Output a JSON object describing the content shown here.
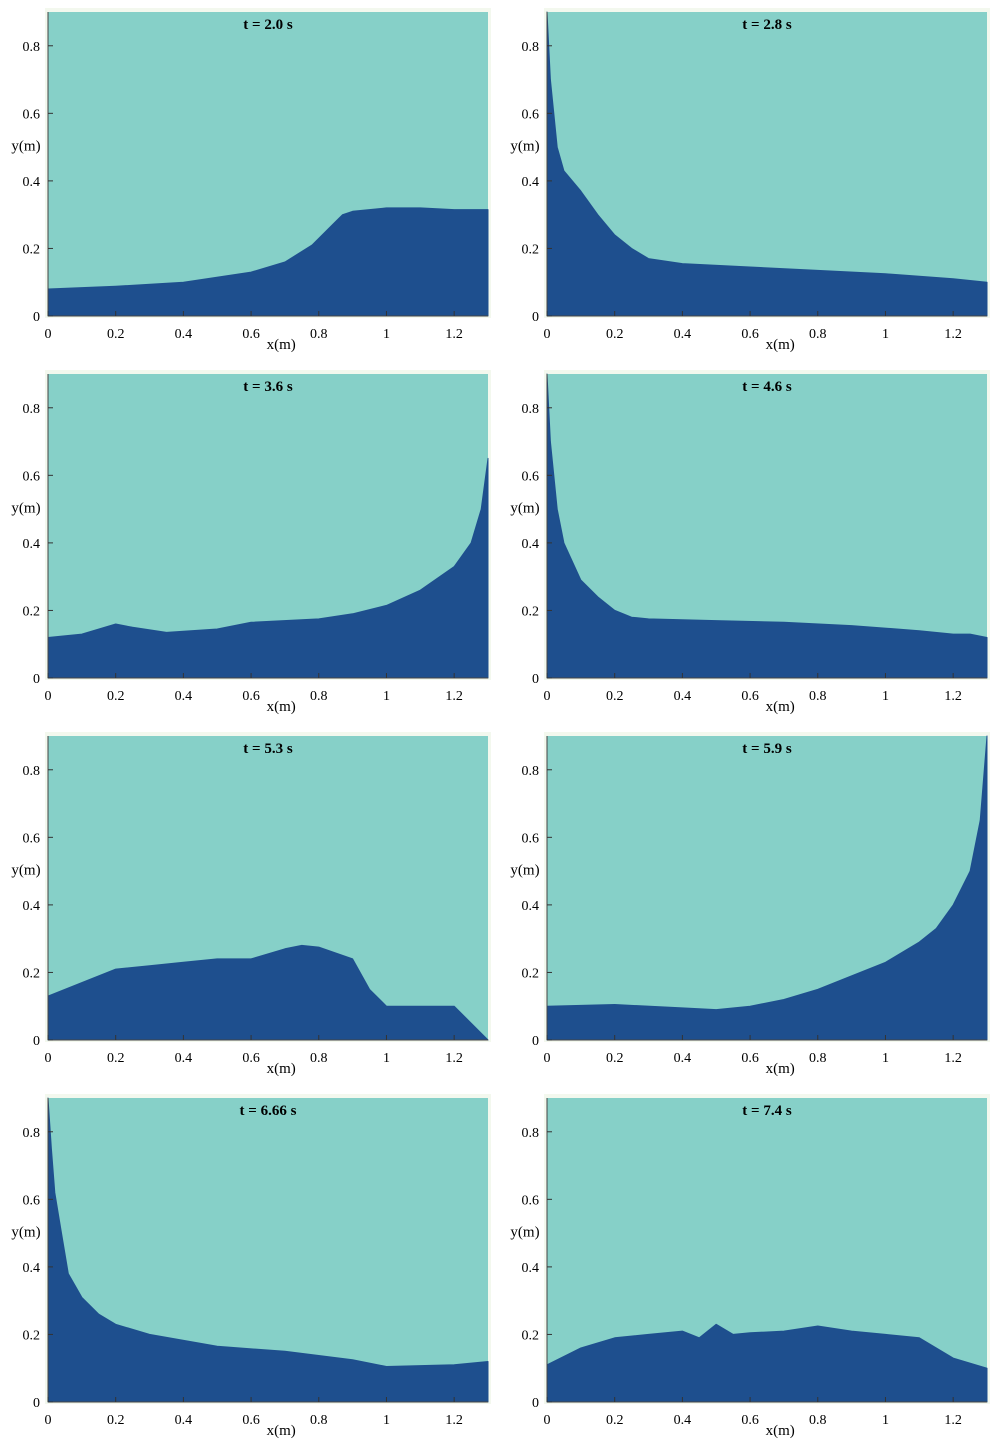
{
  "colors": {
    "air": "#86d0c8",
    "water": "#1e4f8e",
    "frame": "#f3f8ee",
    "axis": "#000000"
  },
  "chart_data": [
    {
      "type": "area",
      "title": "t = 2.0 s",
      "xlabel": "x(m)",
      "ylabel": "y(m)",
      "xlim": [
        0,
        1.3
      ],
      "ylim": [
        0,
        0.9
      ],
      "xticks": [
        "0",
        "0.2",
        "0.4",
        "0.6",
        "0.8",
        "1",
        "1.2"
      ],
      "yticks": [
        "0",
        "0.2",
        "0.4",
        "0.6",
        "0.8"
      ],
      "x": [
        0,
        0.2,
        0.4,
        0.6,
        0.7,
        0.78,
        0.84,
        0.87,
        0.9,
        1.0,
        1.1,
        1.2,
        1.3
      ],
      "y": [
        0.08,
        0.088,
        0.1,
        0.13,
        0.16,
        0.21,
        0.27,
        0.3,
        0.31,
        0.32,
        0.32,
        0.315,
        0.315
      ]
    },
    {
      "type": "area",
      "title": "t = 2.8 s",
      "xlabel": "x(m)",
      "ylabel": "y(m)",
      "xlim": [
        0,
        1.3
      ],
      "ylim": [
        0,
        0.9
      ],
      "xticks": [
        "0",
        "0.2",
        "0.4",
        "0.6",
        "0.8",
        "1",
        "1.2"
      ],
      "yticks": [
        "0",
        "0.2",
        "0.4",
        "0.6",
        "0.8"
      ],
      "x": [
        0,
        0.005,
        0.01,
        0.02,
        0.03,
        0.05,
        0.1,
        0.15,
        0.2,
        0.25,
        0.3,
        0.4,
        0.6,
        0.8,
        1.0,
        1.2,
        1.3
      ],
      "y": [
        0.9,
        0.8,
        0.7,
        0.6,
        0.5,
        0.43,
        0.37,
        0.3,
        0.24,
        0.2,
        0.17,
        0.155,
        0.145,
        0.135,
        0.125,
        0.11,
        0.1
      ]
    },
    {
      "type": "area",
      "title": "t = 3.6 s",
      "xlabel": "x(m)",
      "ylabel": "y(m)",
      "xlim": [
        0,
        1.3
      ],
      "ylim": [
        0,
        0.9
      ],
      "xticks": [
        "0",
        "0.2",
        "0.4",
        "0.6",
        "0.8",
        "1",
        "1.2"
      ],
      "yticks": [
        "0",
        "0.2",
        "0.4",
        "0.6",
        "0.8"
      ],
      "x": [
        0,
        0.1,
        0.2,
        0.25,
        0.35,
        0.5,
        0.6,
        0.8,
        0.9,
        1.0,
        1.1,
        1.2,
        1.25,
        1.28,
        1.3
      ],
      "y": [
        0.12,
        0.13,
        0.16,
        0.15,
        0.135,
        0.145,
        0.165,
        0.175,
        0.19,
        0.215,
        0.26,
        0.33,
        0.4,
        0.5,
        0.65
      ]
    },
    {
      "type": "area",
      "title": "t = 4.6 s",
      "xlabel": "x(m)",
      "ylabel": "y(m)",
      "xlim": [
        0,
        1.3
      ],
      "ylim": [
        0,
        0.9
      ],
      "xticks": [
        "0",
        "0.2",
        "0.4",
        "0.6",
        "0.8",
        "1",
        "1.2"
      ],
      "yticks": [
        "0",
        "0.2",
        "0.4",
        "0.6",
        "0.8"
      ],
      "x": [
        0,
        0.005,
        0.01,
        0.02,
        0.03,
        0.05,
        0.1,
        0.15,
        0.2,
        0.25,
        0.3,
        0.5,
        0.7,
        0.9,
        1.1,
        1.2,
        1.25,
        1.3
      ],
      "y": [
        0.9,
        0.8,
        0.7,
        0.6,
        0.5,
        0.4,
        0.29,
        0.24,
        0.2,
        0.18,
        0.175,
        0.17,
        0.165,
        0.155,
        0.14,
        0.13,
        0.13,
        0.12
      ]
    },
    {
      "type": "area",
      "title": "t = 5.3 s",
      "xlabel": "x(m)",
      "ylabel": "y(m)",
      "xlim": [
        0,
        1.3
      ],
      "ylim": [
        0,
        0.9
      ],
      "xticks": [
        "0",
        "0.2",
        "0.4",
        "0.6",
        "0.8",
        "1",
        "1.2"
      ],
      "yticks": [
        "0",
        "0.2",
        "0.4",
        "0.6",
        "0.8"
      ],
      "x": [
        0,
        0.1,
        0.2,
        0.3,
        0.4,
        0.5,
        0.6,
        0.7,
        0.75,
        0.8,
        0.9,
        0.95,
        1.0,
        1.1,
        1.2,
        1.25,
        1.3
      ],
      "y": [
        0.13,
        0.17,
        0.21,
        0.22,
        0.23,
        0.24,
        0.24,
        0.27,
        0.28,
        0.275,
        0.24,
        0.15,
        0.1,
        0.1,
        0.1,
        0.05,
        0.0
      ]
    },
    {
      "type": "area",
      "title": "t = 5.9 s",
      "xlabel": "x(m)",
      "ylabel": "y(m)",
      "xlim": [
        0,
        1.3
      ],
      "ylim": [
        0,
        0.9
      ],
      "xticks": [
        "0",
        "0.2",
        "0.4",
        "0.6",
        "0.8",
        "1",
        "1.2"
      ],
      "yticks": [
        "0",
        "0.2",
        "0.4",
        "0.6",
        "0.8"
      ],
      "x": [
        0,
        0.2,
        0.4,
        0.5,
        0.6,
        0.7,
        0.8,
        0.9,
        1.0,
        1.1,
        1.15,
        1.2,
        1.25,
        1.28,
        1.3
      ],
      "y": [
        0.1,
        0.105,
        0.095,
        0.09,
        0.1,
        0.12,
        0.15,
        0.19,
        0.23,
        0.29,
        0.33,
        0.4,
        0.5,
        0.65,
        0.9
      ]
    },
    {
      "type": "area",
      "title": "t = 6.66 s",
      "xlabel": "x(m)",
      "ylabel": "y(m)",
      "xlim": [
        0,
        1.3
      ],
      "ylim": [
        0,
        0.9
      ],
      "xticks": [
        "0",
        "0.2",
        "0.4",
        "0.6",
        "0.8",
        "1",
        "1.2"
      ],
      "yticks": [
        "0",
        "0.2",
        "0.4",
        "0.6",
        "0.8"
      ],
      "x": [
        0,
        0.01,
        0.02,
        0.04,
        0.06,
        0.1,
        0.15,
        0.2,
        0.3,
        0.5,
        0.7,
        0.9,
        1.0,
        1.2,
        1.3
      ],
      "y": [
        0.9,
        0.75,
        0.62,
        0.5,
        0.38,
        0.31,
        0.26,
        0.23,
        0.2,
        0.165,
        0.15,
        0.125,
        0.105,
        0.11,
        0.12
      ]
    },
    {
      "type": "area",
      "title": "t = 7.4 s",
      "xlabel": "x(m)",
      "ylabel": "y(m)",
      "xlim": [
        0,
        1.3
      ],
      "ylim": [
        0,
        0.9
      ],
      "xticks": [
        "0",
        "0.2",
        "0.4",
        "0.6",
        "0.8",
        "1",
        "1.2"
      ],
      "yticks": [
        "0",
        "0.2",
        "0.4",
        "0.6",
        "0.8"
      ],
      "x": [
        0,
        0.1,
        0.2,
        0.3,
        0.4,
        0.45,
        0.5,
        0.55,
        0.6,
        0.7,
        0.8,
        0.9,
        1.0,
        1.1,
        1.2,
        1.3
      ],
      "y": [
        0.11,
        0.16,
        0.19,
        0.2,
        0.21,
        0.19,
        0.23,
        0.2,
        0.205,
        0.21,
        0.225,
        0.21,
        0.2,
        0.19,
        0.13,
        0.1
      ]
    }
  ]
}
